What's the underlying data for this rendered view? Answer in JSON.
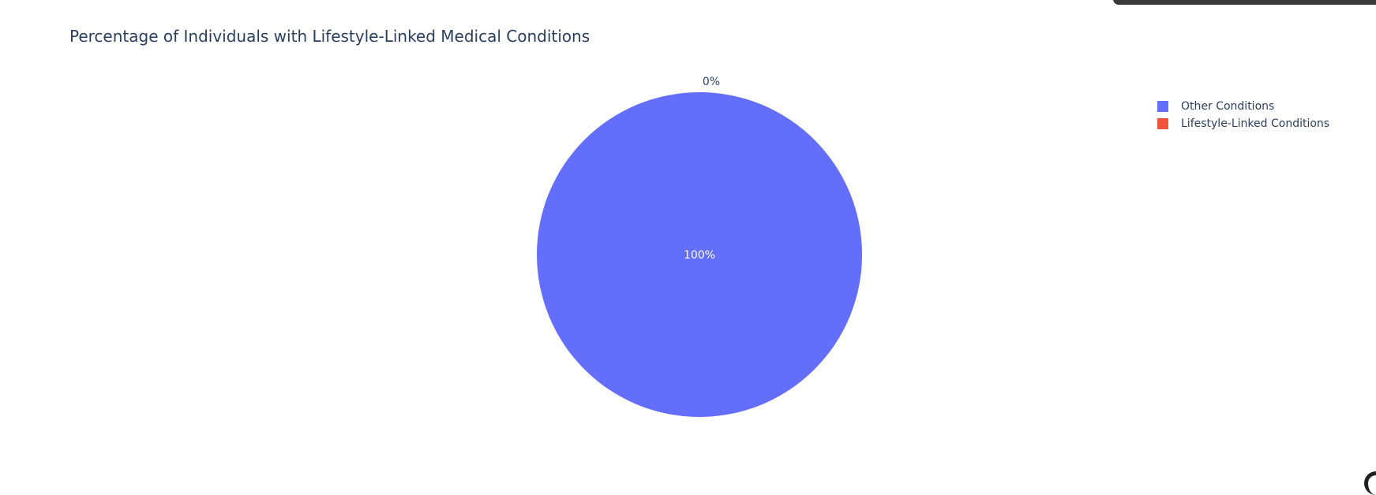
{
  "chart_data": {
    "type": "pie",
    "title": "Percentage of Individuals with Lifestyle-Linked Medical Conditions",
    "labels": [
      "Other Conditions",
      "Lifestyle-Linked Conditions"
    ],
    "values": [
      100,
      0
    ],
    "text_labels": [
      "100%",
      "0%"
    ],
    "colors": [
      "#636efa",
      "#ef553b"
    ],
    "legend_position": "top-right"
  }
}
